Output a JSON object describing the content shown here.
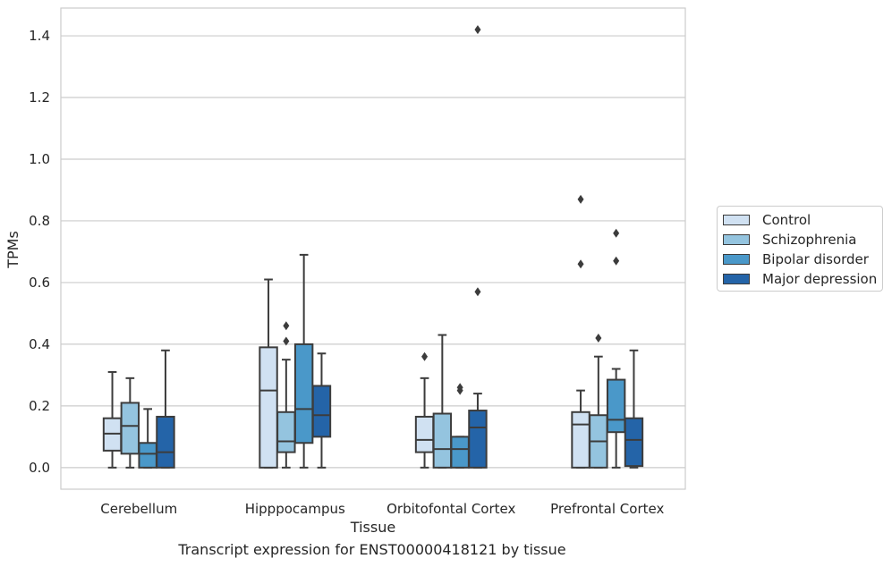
{
  "chart_data": {
    "type": "box",
    "title": "",
    "caption": "Transcript expression for ENST00000418121 by tissue",
    "xlabel": "Tissue",
    "ylabel": "TPMs",
    "ylim": [
      -0.07,
      1.49
    ],
    "yticks": [
      "0.0",
      "0.2",
      "0.4",
      "0.6",
      "0.8",
      "1.0",
      "1.2",
      "1.4"
    ],
    "ytick_values": [
      0.0,
      0.2,
      0.4,
      0.6,
      0.8,
      1.0,
      1.2,
      1.4
    ],
    "grid": true,
    "legend_position": "right-center",
    "categories": [
      "Cerebellum",
      "Hipppocampus",
      "Orbitofontal Cortex",
      "Prefrontal Cortex"
    ],
    "series": [
      {
        "name": "Control",
        "color": "#d0e1f2",
        "boxes": [
          {
            "whisker_low": 0.0,
            "q1": 0.055,
            "median": 0.11,
            "q3": 0.16,
            "whisker_high": 0.31,
            "outliers": []
          },
          {
            "whisker_low": 0.0,
            "q1": 0.0,
            "median": 0.25,
            "q3": 0.39,
            "whisker_high": 0.61,
            "outliers": []
          },
          {
            "whisker_low": 0.0,
            "q1": 0.05,
            "median": 0.09,
            "q3": 0.165,
            "whisker_high": 0.29,
            "outliers": [
              0.36
            ]
          },
          {
            "whisker_low": 0.0,
            "q1": 0.0,
            "median": 0.14,
            "q3": 0.18,
            "whisker_high": 0.25,
            "outliers": [
              0.66,
              0.87
            ]
          }
        ]
      },
      {
        "name": "Schizophrenia",
        "color": "#94c4df",
        "boxes": [
          {
            "whisker_low": 0.0,
            "q1": 0.045,
            "median": 0.135,
            "q3": 0.21,
            "whisker_high": 0.29,
            "outliers": []
          },
          {
            "whisker_low": 0.0,
            "q1": 0.05,
            "median": 0.085,
            "q3": 0.18,
            "whisker_high": 0.35,
            "outliers": [
              0.41,
              0.46
            ]
          },
          {
            "whisker_low": 0.0,
            "q1": 0.0,
            "median": 0.06,
            "q3": 0.175,
            "whisker_high": 0.43,
            "outliers": []
          },
          {
            "whisker_low": 0.0,
            "q1": 0.0,
            "median": 0.085,
            "q3": 0.17,
            "whisker_high": 0.36,
            "outliers": [
              0.42
            ]
          }
        ]
      },
      {
        "name": "Bipolar disorder",
        "color": "#4a98c9",
        "boxes": [
          {
            "whisker_low": 0.0,
            "q1": 0.0,
            "median": 0.045,
            "q3": 0.08,
            "whisker_high": 0.19,
            "outliers": []
          },
          {
            "whisker_low": 0.0,
            "q1": 0.08,
            "median": 0.19,
            "q3": 0.4,
            "whisker_high": 0.69,
            "outliers": []
          },
          {
            "whisker_low": 0.0,
            "q1": 0.0,
            "median": 0.06,
            "q3": 0.1,
            "whisker_high": 0.1,
            "outliers": [
              0.25,
              0.26
            ]
          },
          {
            "whisker_low": 0.0,
            "q1": 0.115,
            "median": 0.155,
            "q3": 0.285,
            "whisker_high": 0.32,
            "outliers": [
              0.67,
              0.76
            ]
          }
        ]
      },
      {
        "name": "Major depression",
        "color": "#2464a8",
        "boxes": [
          {
            "whisker_low": 0.0,
            "q1": 0.0,
            "median": 0.05,
            "q3": 0.165,
            "whisker_high": 0.38,
            "outliers": []
          },
          {
            "whisker_low": 0.0,
            "q1": 0.1,
            "median": 0.17,
            "q3": 0.265,
            "whisker_high": 0.37,
            "outliers": []
          },
          {
            "whisker_low": 0.0,
            "q1": 0.0,
            "median": 0.13,
            "q3": 0.185,
            "whisker_high": 0.24,
            "outliers": [
              0.57,
              1.42
            ]
          },
          {
            "whisker_low": 0.0,
            "q1": 0.005,
            "median": 0.09,
            "q3": 0.16,
            "whisker_high": 0.38,
            "outliers": []
          }
        ]
      }
    ]
  }
}
